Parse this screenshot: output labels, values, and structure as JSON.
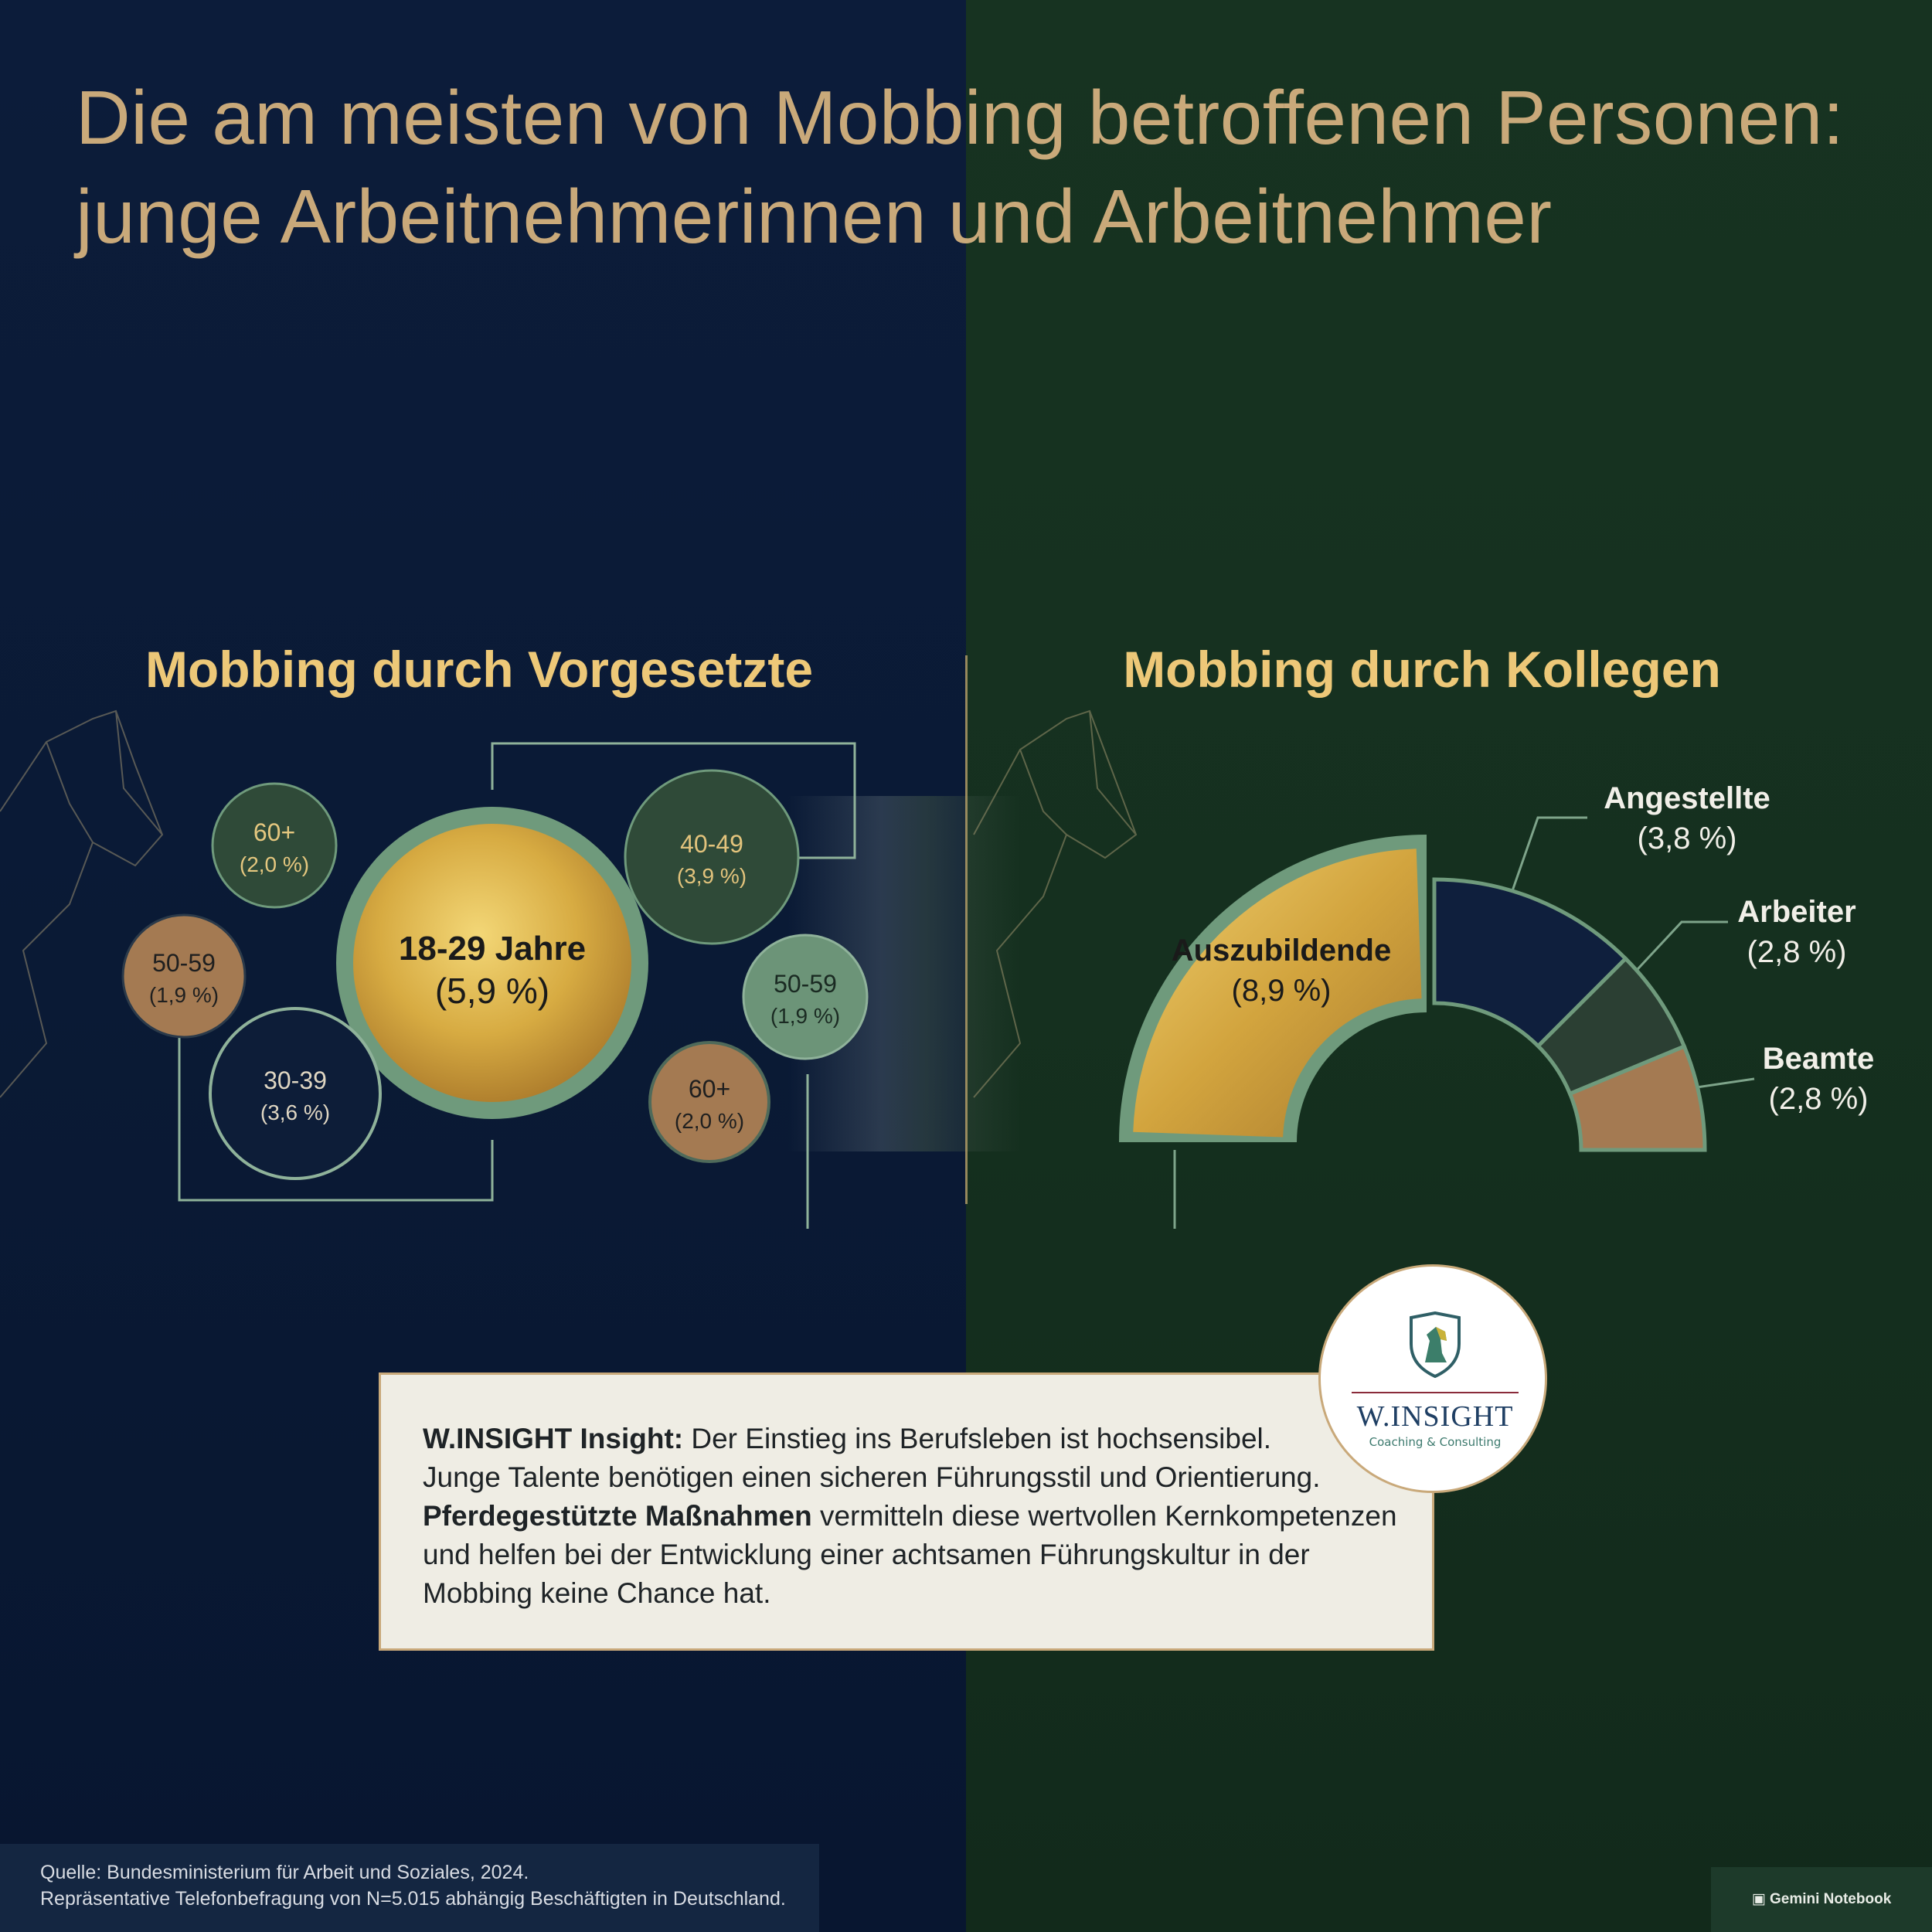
{
  "title": {
    "line1": "Die am meisten von Mobbing betroffenen Personen:",
    "line2": "junge Arbeitnehmerinnen und Arbeitnehmer"
  },
  "chart_data": [
    {
      "type": "bubble",
      "title": "Mobbing durch Vorgesetzte",
      "unit": "%",
      "points": [
        {
          "label": "18-29 Jahre",
          "value": 5.9,
          "value_text": "(5,9 %)",
          "color": "#d4a93f"
        },
        {
          "label": "60+",
          "value": 2.0,
          "value_text": "(2,0 %)",
          "color": "#2f4a38"
        },
        {
          "label": "50-59",
          "value": 1.9,
          "value_text": "(1,9 %)",
          "color": "#a47a52"
        },
        {
          "label": "30-39",
          "value": 3.6,
          "value_text": "(3,6 %)",
          "color": "#0d1d38"
        },
        {
          "label": "40-49",
          "value": 3.9,
          "value_text": "(3,9 %)",
          "color": "#2f4a38"
        },
        {
          "label": "50-59",
          "value": 1.9,
          "value_text": "(1,9 %)",
          "color": "#6c9478"
        },
        {
          "label": "60+",
          "value": 2.0,
          "value_text": "(2,0 %)",
          "color": "#a47a52"
        }
      ]
    },
    {
      "type": "pie",
      "title": "Mobbing durch Kollegen",
      "unit": "%",
      "slices": [
        {
          "label": "Auszubildende",
          "value": 8.9,
          "value_text": "(8,9 %)",
          "color": "#d4a93f"
        },
        {
          "label": "Angestellte",
          "value": 3.8,
          "value_text": "(3,8 %)",
          "color": "#0f1f3d"
        },
        {
          "label": "Arbeiter",
          "value": 2.8,
          "value_text": "(2,8 %)",
          "color": "#2b3f33"
        },
        {
          "label": "Beamte",
          "value": 2.8,
          "value_text": "(2,8 %)",
          "color": "#a47a52"
        }
      ]
    }
  ],
  "insight": {
    "brand_label": "W.INSIGHT Insight:",
    "line1_rest": " Der Einstieg ins Berufsleben ist hochsensibel.",
    "line2": "Junge Talente benötigen einen sicheren Führungsstil und Orientierung.",
    "emph": "Pferdegestützte Maßnahmen",
    "line3_rest": " vermitteln diese wertvollen Kernkompetenzen",
    "line4": "und helfen bei der Entwicklung einer achtsamen Führungskultur in der",
    "line5": "Mobbing keine Chance hat."
  },
  "logo": {
    "name": "W.INSIGHT",
    "subtitle": "Coaching & Consulting"
  },
  "source": {
    "line1": "Quelle: Bundesministerium für Arbeit und Soziales, 2024.",
    "line2": "Repräsentative Telefonbefragung von N=5.015 abhängig Beschäftigten in Deutschland."
  },
  "badge": "Gemini Notebook",
  "colors": {
    "title": "#c9a97a",
    "section_title": "#edc878",
    "gold": "#d4a93f",
    "sage": "#6f9a7c"
  }
}
